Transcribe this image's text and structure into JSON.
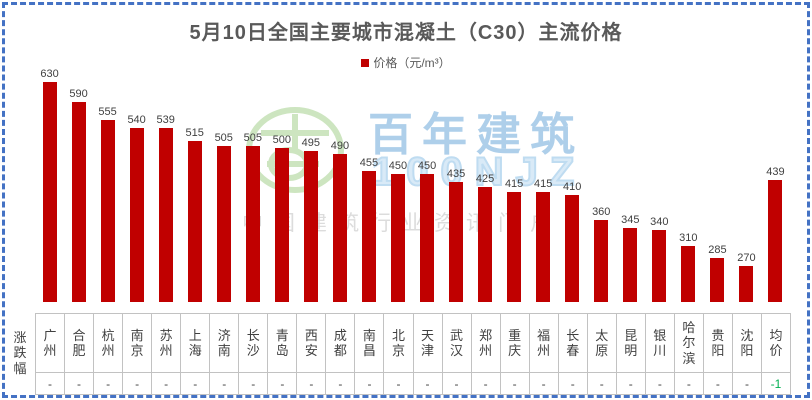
{
  "title": "5月10日全国主要城市混凝土（C30）主流价格",
  "legend": {
    "label": "价格（元/m³）"
  },
  "table": {
    "row_header": "涨跌幅"
  },
  "watermark": {
    "brand": "百年建筑",
    "brand_sub": "100NJZ",
    "tagline": "中国建筑行业资讯门户"
  },
  "chart_data": {
    "type": "bar",
    "title": "5月10日全国主要城市混凝土（C30）主流价格",
    "legend_entries": [
      "价格（元/m³）"
    ],
    "legend_position": "top",
    "grid": false,
    "categories": [
      "广州",
      "合肥",
      "杭州",
      "南京",
      "苏州",
      "上海",
      "济南",
      "长沙",
      "青岛",
      "西安",
      "成都",
      "南昌",
      "北京",
      "天津",
      "武汉",
      "郑州",
      "重庆",
      "福州",
      "长春",
      "太原",
      "昆明",
      "银川",
      "哈尔滨",
      "贵阳",
      "沈阳",
      "均价"
    ],
    "values": [
      630,
      590,
      555,
      540,
      539,
      515,
      505,
      505,
      500,
      495,
      490,
      455,
      450,
      450,
      435,
      425,
      415,
      415,
      410,
      360,
      345,
      340,
      310,
      285,
      270,
      439
    ],
    "changes": [
      "-",
      "-",
      "-",
      "-",
      "-",
      "-",
      "-",
      "-",
      "-",
      "-",
      "-",
      "-",
      "-",
      "-",
      "-",
      "-",
      "-",
      "-",
      "-",
      "-",
      "-",
      "-",
      "-",
      "-",
      "-",
      "-1"
    ],
    "change_row_label": "涨跌幅",
    "ylim": [
      200,
      665
    ],
    "xlabel": "",
    "ylabel": ""
  },
  "colors": {
    "bar": "#C00000",
    "frame_border": "#4472C4",
    "change_down": "#00B050",
    "value_label": "#404040",
    "title_text": "#595959"
  }
}
